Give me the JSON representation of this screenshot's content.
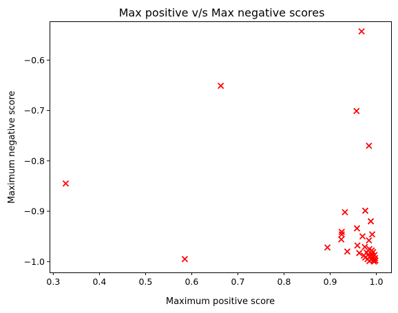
{
  "chart_data": {
    "type": "scatter",
    "title": "Max positive v/s Max negative scores",
    "xlabel": "Maximum positive score",
    "ylabel": "Maximum negative score",
    "xlim": [
      0.292,
      1.032
    ],
    "ylim": [
      -1.0215,
      -0.523
    ],
    "grid": false,
    "marker": "x",
    "color": "#ff0000",
    "x_ticks": [
      0.3,
      0.4,
      0.5,
      0.6,
      0.7,
      0.8,
      0.9,
      1.0
    ],
    "x_tick_labels": [
      "0.3",
      "0.4",
      "0.5",
      "0.6",
      "0.7",
      "0.8",
      "0.9",
      "1.0"
    ],
    "y_ticks": [
      -0.6,
      -0.7,
      -0.8,
      -0.9,
      -1.0
    ],
    "y_tick_labels": [
      "−0.6",
      "−0.7",
      "−0.8",
      "−0.9",
      "−1.0"
    ],
    "points": [
      {
        "x": 0.968,
        "y": -0.543
      },
      {
        "x": 0.663,
        "y": -0.651
      },
      {
        "x": 0.957,
        "y": -0.701
      },
      {
        "x": 0.984,
        "y": -0.77
      },
      {
        "x": 0.327,
        "y": -0.845
      },
      {
        "x": 0.932,
        "y": -0.902
      },
      {
        "x": 0.976,
        "y": -0.899
      },
      {
        "x": 0.988,
        "y": -0.92
      },
      {
        "x": 0.958,
        "y": -0.934
      },
      {
        "x": 0.925,
        "y": -0.941
      },
      {
        "x": 0.925,
        "y": -0.946
      },
      {
        "x": 0.991,
        "y": -0.946
      },
      {
        "x": 0.97,
        "y": -0.95
      },
      {
        "x": 0.924,
        "y": -0.956
      },
      {
        "x": 0.984,
        "y": -0.958
      },
      {
        "x": 0.959,
        "y": -0.968
      },
      {
        "x": 0.894,
        "y": -0.972
      },
      {
        "x": 0.975,
        "y": -0.971
      },
      {
        "x": 0.937,
        "y": -0.98
      },
      {
        "x": 0.985,
        "y": -0.975
      },
      {
        "x": 0.99,
        "y": -0.978
      },
      {
        "x": 0.963,
        "y": -0.983
      },
      {
        "x": 0.979,
        "y": -0.982
      },
      {
        "x": 0.993,
        "y": -0.981
      },
      {
        "x": 0.973,
        "y": -0.988
      },
      {
        "x": 0.982,
        "y": -0.987
      },
      {
        "x": 0.99,
        "y": -0.985
      },
      {
        "x": 0.996,
        "y": -0.987
      },
      {
        "x": 0.976,
        "y": -0.992
      },
      {
        "x": 0.986,
        "y": -0.99
      },
      {
        "x": 0.992,
        "y": -0.991
      },
      {
        "x": 0.997,
        "y": -0.993
      },
      {
        "x": 0.981,
        "y": -0.995
      },
      {
        "x": 0.989,
        "y": -0.996
      },
      {
        "x": 0.994,
        "y": -0.997
      },
      {
        "x": 0.998,
        "y": -0.998
      },
      {
        "x": 0.985,
        "y": -0.999
      },
      {
        "x": 0.995,
        "y": -1.0
      },
      {
        "x": 0.585,
        "y": -0.995
      }
    ]
  }
}
